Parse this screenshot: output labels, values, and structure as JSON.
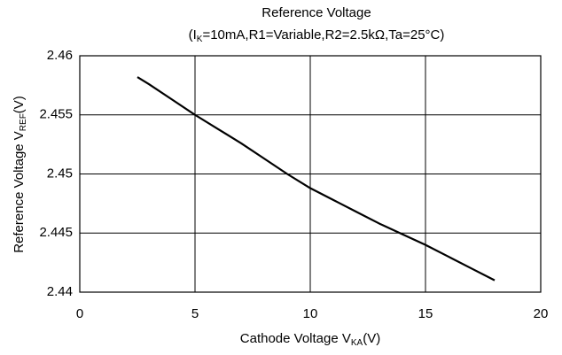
{
  "chart_data": {
    "type": "line",
    "title": "Reference Voltage",
    "subtitle": [
      "(I",
      "K",
      "=10mA,R1=Variable,R2=2.5kΩ,Ta=25°C)"
    ],
    "xlabel": [
      "Cathode Voltage  V",
      "KA",
      "(V)"
    ],
    "ylabel": [
      "Reference Voltage  V",
      "REF",
      "(V)"
    ],
    "x": [
      2.5,
      3,
      4,
      5,
      6,
      7,
      8,
      9,
      10,
      11,
      12,
      13,
      14,
      15,
      16,
      17,
      18
    ],
    "series": [
      {
        "color": "#000000",
        "values": [
          2.4582,
          2.4576,
          2.4563,
          2.455,
          2.4538,
          2.4526,
          2.4513,
          2.45,
          2.4488,
          2.4478,
          2.4468,
          2.4458,
          2.4449,
          2.444,
          2.443,
          2.442,
          2.441
        ]
      }
    ],
    "xlim": [
      0,
      20
    ],
    "xticks": [
      0,
      5,
      10,
      15,
      20
    ],
    "ylim": [
      2.44,
      2.46
    ],
    "yticks": [
      2.44,
      2.445,
      2.45,
      2.455,
      2.46
    ],
    "grid": true
  }
}
